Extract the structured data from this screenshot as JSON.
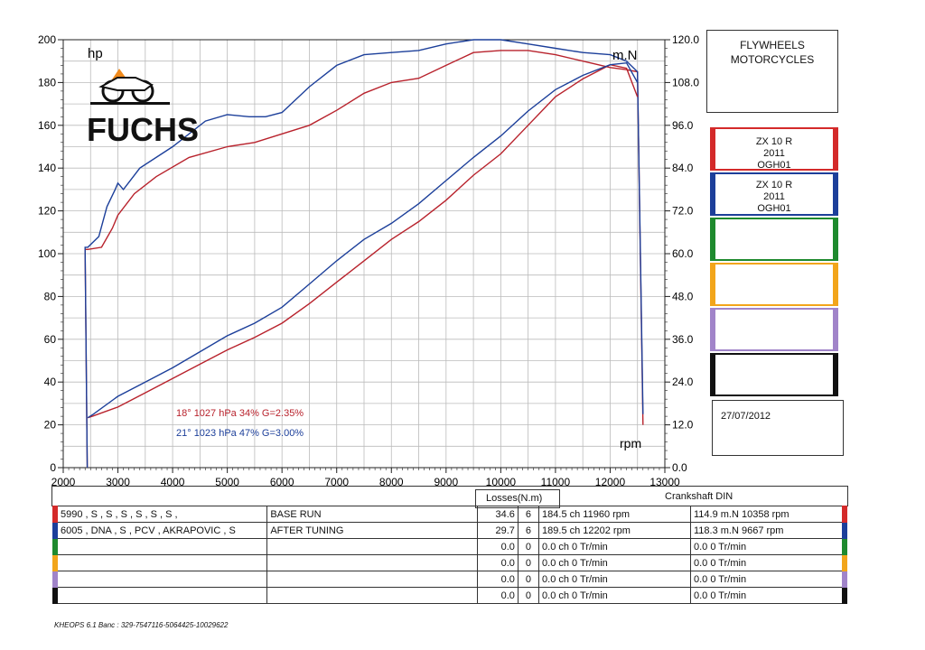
{
  "chart_data": {
    "type": "line",
    "title": "FLYWHEELS MOTORCYCLES",
    "xlabel": "rpm",
    "ylabel_left": "hp",
    "ylabel_right": "m.N",
    "xlim": [
      2000,
      13000
    ],
    "ylim_left": [
      0,
      200
    ],
    "ylim_right": [
      0.0,
      120.0
    ],
    "x_ticks": [
      "2000",
      "3000",
      "4000",
      "5000",
      "6000",
      "7000",
      "8000",
      "9000",
      "10000",
      "11000",
      "12000",
      "13000"
    ],
    "yleft_ticks": [
      "0",
      "20",
      "40",
      "60",
      "80",
      "100",
      "120",
      "140",
      "160",
      "180",
      "200"
    ],
    "yright_ticks": [
      "0.0",
      "12.0",
      "24.0",
      "36.0",
      "48.0",
      "60.0",
      "72.0",
      "84.0",
      "96.0",
      "108.0",
      "120.0"
    ],
    "series": [
      {
        "name": "BASE RUN power",
        "axis": "left",
        "color": "#b8222c",
        "x": [
          2400,
          2450,
          2700,
          2900,
          3000,
          3300,
          3700,
          4300,
          5000,
          5500,
          6000,
          6500,
          7000,
          7500,
          8000,
          8500,
          9000,
          9500,
          10000,
          10500,
          11000,
          11500,
          12000,
          12300,
          12500,
          12600
        ],
        "y": [
          102,
          102,
          103,
          112,
          118,
          128,
          136,
          145,
          150,
          152,
          156,
          160,
          167,
          175,
          180,
          182,
          188,
          194,
          195,
          195,
          193,
          190,
          187,
          186,
          185,
          20
        ]
      },
      {
        "name": "AFTER TUNING power",
        "axis": "left",
        "color": "#1c3f9a",
        "x": [
          2400,
          2450,
          2650,
          2800,
          2950,
          3000,
          3100,
          3400,
          4000,
          4600,
          5000,
          5400,
          5700,
          6000,
          6500,
          7000,
          7500,
          8000,
          8500,
          9000,
          9500,
          10000,
          10500,
          11000,
          11500,
          12000,
          12300,
          12500,
          12600
        ],
        "y": [
          103,
          103,
          108,
          122,
          130,
          133,
          130,
          140,
          150,
          162,
          165,
          164,
          164,
          166,
          178,
          188,
          193,
          194,
          195,
          198,
          200,
          200,
          198,
          196,
          194,
          193,
          190,
          185,
          25
        ]
      },
      {
        "name": "BASE RUN torque",
        "axis": "right",
        "color": "#b8222c",
        "x": [
          2450,
          2550,
          3000,
          3500,
          4000,
          4500,
          5000,
          5500,
          6000,
          6500,
          7000,
          7500,
          8000,
          8500,
          9000,
          9500,
          10000,
          10500,
          11000,
          11500,
          12000,
          12300,
          12500
        ],
        "y": [
          14,
          14.5,
          17,
          21,
          25,
          29,
          33,
          36.5,
          40.5,
          46,
          52,
          58,
          64,
          69,
          75,
          82,
          88,
          96,
          104,
          109,
          113,
          112,
          104
        ]
      },
      {
        "name": "AFTER TUNING torque",
        "axis": "right",
        "color": "#1c3f9a",
        "x": [
          2450,
          2550,
          3000,
          3500,
          4000,
          4500,
          5000,
          5500,
          6000,
          6500,
          7000,
          7500,
          8000,
          8500,
          9000,
          9500,
          10000,
          10500,
          11000,
          11500,
          12000,
          12300,
          12500
        ],
        "y": [
          14,
          15,
          20,
          24,
          28,
          32.5,
          37,
          40.5,
          45,
          51.5,
          58,
          64,
          68.5,
          74,
          80.5,
          87,
          93,
          100,
          106,
          110,
          113,
          113.5,
          108
        ]
      }
    ],
    "annotations": [
      {
        "text": "18°  1027 hPa  34%    G=2.35%",
        "color": "#b8222c"
      },
      {
        "text": "21°  1023 hPa  47%    G=3.00%",
        "color": "#1c3f9a"
      }
    ]
  },
  "title_box": {
    "line1": "FLYWHEELS",
    "line2": "MOTORCYCLES"
  },
  "logo_text": "FUCHS",
  "legend_slots": [
    {
      "color": "#d42a2a",
      "lines": [
        "ZX 10 R",
        "2011",
        "OGH01"
      ]
    },
    {
      "color": "#1c3f9a",
      "lines": [
        "ZX 10 R",
        "2011",
        "OGH01"
      ]
    },
    {
      "color": "#1e8a2e",
      "lines": [
        "",
        "",
        ""
      ]
    },
    {
      "color": "#f2a51a",
      "lines": [
        "",
        "",
        ""
      ]
    },
    {
      "color": "#a184c9",
      "lines": [
        "",
        "",
        ""
      ]
    },
    {
      "color": "#111111",
      "lines": [
        "",
        "",
        ""
      ]
    }
  ],
  "date": "27/07/2012",
  "table": {
    "losses_header": "Losses(N.m)",
    "crank_header": "Crankshaft DIN",
    "rows": [
      {
        "color": "#d42a2a",
        "config": "5990 , S   , S   , S   , S   , S   , S   ,",
        "name": "BASE RUN",
        "loss": "34.6",
        "n": "6",
        "power": "184.5 ch 11960 rpm",
        "torque": "114.9 m.N 10358 rpm"
      },
      {
        "color": "#1c3f9a",
        "config": "6005 , DNA , S    , PCV , AKRAPOVIC , S",
        "name": "AFTER TUNING",
        "loss": "29.7",
        "n": "6",
        "power": "189.5 ch 12202 rpm",
        "torque": "118.3 m.N 9667 rpm"
      },
      {
        "color": "#1e8a2e",
        "config": "",
        "name": "",
        "loss": "0.0",
        "n": "0",
        "power": "0.0 ch 0 Tr/min",
        "torque": "0.0  0 Tr/min"
      },
      {
        "color": "#f2a51a",
        "config": "",
        "name": "",
        "loss": "0.0",
        "n": "0",
        "power": "0.0 ch 0 Tr/min",
        "torque": "0.0  0 Tr/min"
      },
      {
        "color": "#a184c9",
        "config": "",
        "name": "",
        "loss": "0.0",
        "n": "0",
        "power": "0.0 ch 0 Tr/min",
        "torque": "0.0  0 Tr/min"
      },
      {
        "color": "#111111",
        "config": "",
        "name": "",
        "loss": "0.0",
        "n": "0",
        "power": "0.0 ch 0 Tr/min",
        "torque": "0.0  0 Tr/min"
      }
    ]
  },
  "footer": "KHEOPS 6.1  Banc : 329-7547116-5064425-10029622"
}
